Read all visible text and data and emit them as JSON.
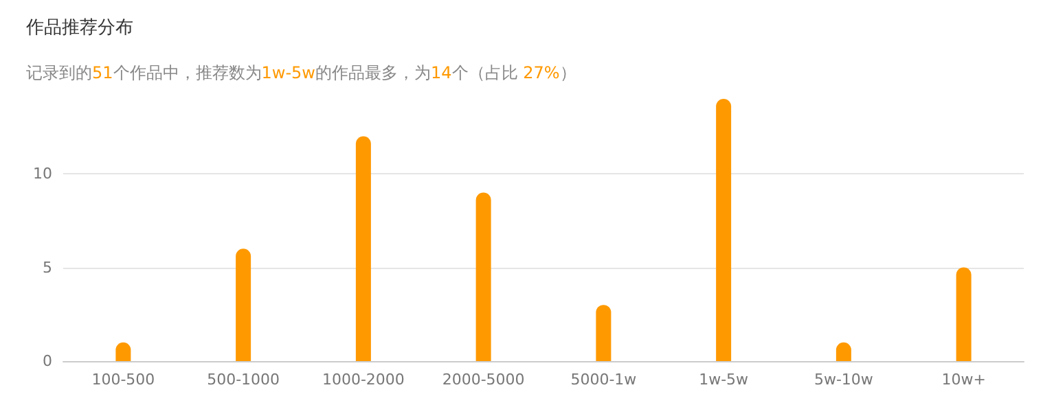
{
  "chart_data": {
    "type": "bar",
    "title": "作品推荐分布",
    "subtitle": "记录到的51个作品中，推荐数为1w-5w的作品最多，为14个（占比 27%）",
    "categories": [
      "100-500",
      "500-1000",
      "1000-2000",
      "2000-5000",
      "5000-1w",
      "1w-5w",
      "5w-10w",
      "10w+"
    ],
    "values": [
      1,
      6,
      12,
      9,
      3,
      14,
      1,
      5
    ],
    "color": "#ff9900",
    "ylim": [
      0,
      14
    ],
    "yticks": [
      0,
      5,
      10
    ],
    "grid": "y"
  }
}
